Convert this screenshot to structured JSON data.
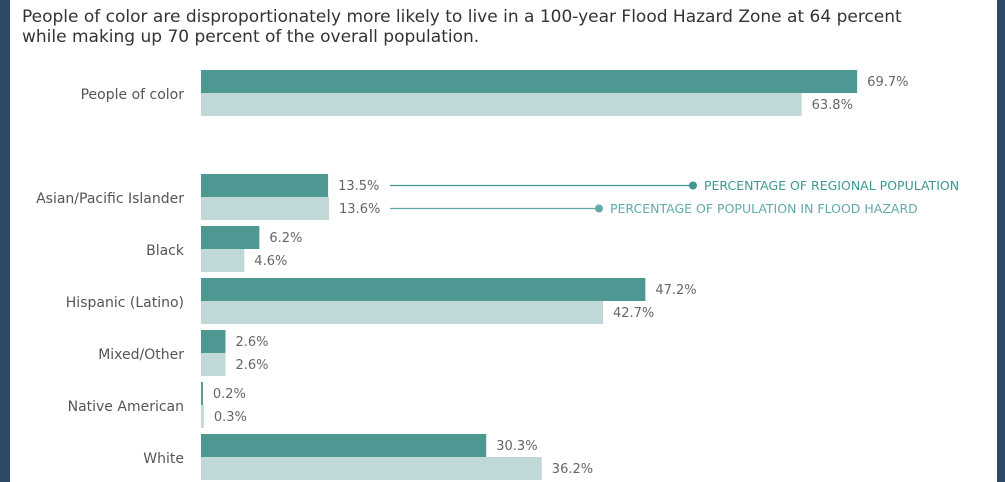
{
  "chart_data": {
    "type": "hbar",
    "title": [
      "People of color are disproportionately more likely to live in a 100-year Flood Hazard Zone at 64 percent",
      "while making up 70 percent of the overall population."
    ],
    "categories": [
      "People of color",
      "Asian/Pacific Islander",
      "Black",
      "Hispanic (Latino)",
      "Mixed/Other",
      "Native American",
      "White"
    ],
    "series": [
      {
        "name": "PERCENTAGE OF REGIONAL POPULATION",
        "color": "#4e9893",
        "values": [
          69.7,
          13.5,
          6.2,
          47.2,
          2.6,
          0.2,
          30.3
        ],
        "value_labels": [
          "69.7%",
          "13.5%",
          "6.2%",
          "47.2%",
          "2.6%",
          "0.2%",
          "30.3%"
        ]
      },
      {
        "name": "PERCENTAGE OF POPULATION IN FLOOD HAZARD",
        "color": "#c1d8d8",
        "values": [
          63.8,
          13.6,
          4.6,
          42.7,
          2.6,
          0.3,
          36.2
        ],
        "value_labels": [
          "63.8%",
          "13.6%",
          "4.6%",
          "42.7%",
          "2.6%",
          "0.3%",
          "36.2%"
        ]
      }
    ],
    "legend_text_colors": [
      "#3c9890",
      "#62aaa8"
    ],
    "xlim": [
      0,
      70
    ]
  }
}
